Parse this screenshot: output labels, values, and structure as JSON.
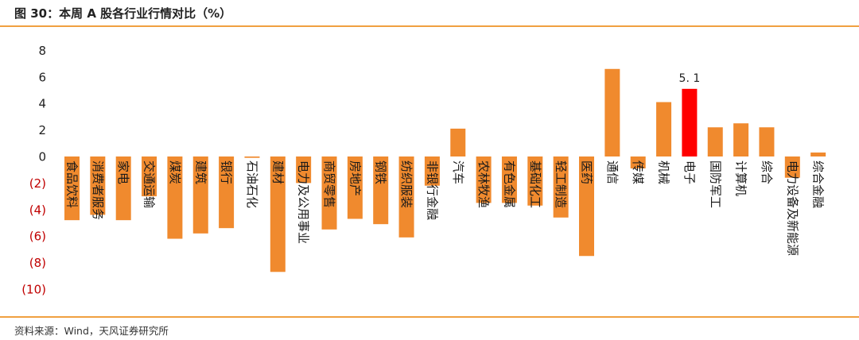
{
  "header": {
    "title": "图 30：本周 A 股各行业行情对比（%）"
  },
  "footer": {
    "source": "资料来源：Wind，天风证券研究所"
  },
  "colors": {
    "bar": "#f08a2e",
    "highlight": "#ff0000",
    "rule": "#f0a040",
    "neg_tick": "#c00000",
    "pos_tick": "#222222"
  },
  "chart_data": {
    "type": "bar",
    "title": "",
    "xlabel": "",
    "ylabel": "",
    "ylim": [
      -10,
      8
    ],
    "yticks": [
      8,
      6,
      4,
      2,
      0,
      -2,
      -4,
      -6,
      -8,
      -10
    ],
    "ytick_labels": [
      "8",
      "6",
      "4",
      "2",
      "0",
      "(2)",
      "(4)",
      "(6)",
      "(8)",
      "(10)"
    ],
    "grid": false,
    "legend": "none",
    "categories": [
      "食品饮料",
      "消费者服务",
      "家电",
      "交通运输",
      "煤炭",
      "建筑",
      "银行",
      "石油石化",
      "建材",
      "电力及公用事业",
      "商贸零售",
      "房地产",
      "钢铁",
      "纺织服装",
      "非银行金融",
      "汽车",
      "农林牧渔",
      "有色金属",
      "基础化工",
      "轻工制造",
      "医药",
      "通信",
      "传媒",
      "机械",
      "电子",
      "国防军工",
      "计算机",
      "综合",
      "电力设备及新能源",
      "综合金融"
    ],
    "values": [
      -4.8,
      -4.4,
      -4.8,
      -3.0,
      -6.2,
      -5.8,
      -5.4,
      -0.1,
      -8.7,
      -2.0,
      -5.5,
      -4.7,
      -5.1,
      -6.1,
      -2.2,
      2.1,
      -3.5,
      -3.5,
      -3.7,
      -4.6,
      -7.5,
      6.6,
      -0.9,
      4.1,
      5.1,
      2.2,
      2.5,
      2.2,
      -1.6,
      0.3
    ],
    "highlight_index": 24,
    "annotation": {
      "category": "电子",
      "text": "5. 1"
    }
  }
}
